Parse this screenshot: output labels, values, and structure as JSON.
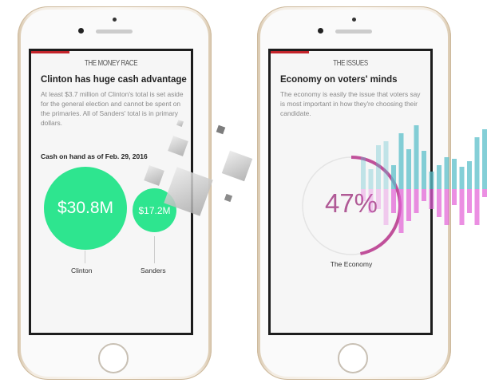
{
  "left_phone": {
    "kicker": "THE MONEY RACE",
    "title": "Clinton has huge cash advantage",
    "description": "At least $3.7 million of Clinton's total is set aside for the general election and cannot be spent on the primaries. All of Sanders' total is in primary dollars.",
    "subtitle": "Cash on hand as of Feb. 29, 2016",
    "bubbles": [
      {
        "name": "Clinton",
        "value": "$30.8M",
        "amount_millions": 30.8
      },
      {
        "name": "Sanders",
        "value": "$17.2M",
        "amount_millions": 17.2
      }
    ],
    "bubble_color": "#2ee58f"
  },
  "right_phone": {
    "kicker": "THE ISSUES",
    "title": "Economy on voters' minds",
    "description": "The economy is easily the issue that voters say is most important in how they're choosing their candidate.",
    "gauge": {
      "value": "47%",
      "percent": 47,
      "label": "The Economy",
      "color": "#c0509a"
    }
  },
  "accent_color": "#c4242b"
}
